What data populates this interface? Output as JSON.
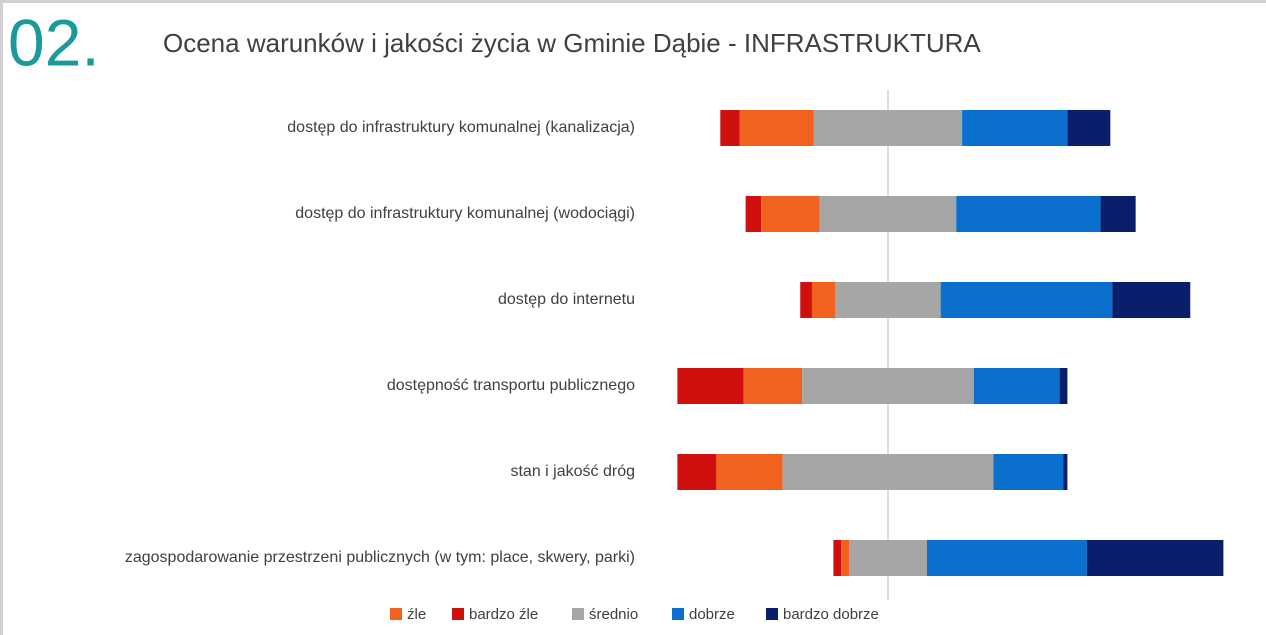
{
  "heading": "02.",
  "chart_data": {
    "type": "diverging-bar",
    "title": "Ocena warunków i jakości życia w Gminie Dąbie - INFRASTRUKTURA",
    "categories": [
      "dostęp do infrastruktury komunalnej (kanalizacja)",
      "dostęp do infrastruktury komunalnej (wodociągi)",
      "dostęp do internetu",
      "dostępność transportu publicznego",
      "stan i jakość dróg",
      "zagospodarowanie przestrzeni publicznych (w tym: place, skwery, parki)"
    ],
    "series": [
      {
        "name": "źle",
        "color": "#f2621f",
        "values": [
          19,
          15,
          6,
          15,
          17,
          2
        ]
      },
      {
        "name": "bardzo źle",
        "color": "#d00f0f",
        "values": [
          5,
          4,
          3,
          17,
          10,
          2
        ]
      },
      {
        "name": "średnio",
        "color": "#a6a6a6",
        "values": [
          38,
          35,
          27,
          44,
          54,
          20
        ]
      },
      {
        "name": "dobrze",
        "color": "#0b6fce",
        "values": [
          27,
          37,
          44,
          22,
          18,
          41
        ]
      },
      {
        "name": "bardzo dobrze",
        "color": "#0a1f6b",
        "values": [
          11,
          9,
          20,
          2,
          1,
          35
        ]
      }
    ]
  }
}
